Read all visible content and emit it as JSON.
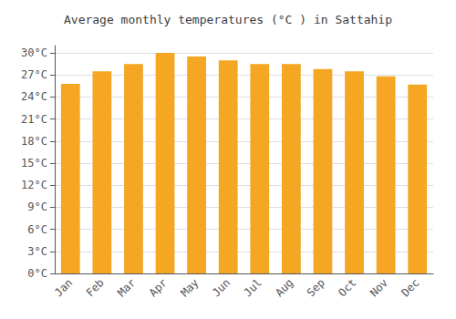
{
  "chart_data": {
    "type": "bar",
    "title": "Average monthly temperatures (°C ) in Sattahip",
    "categories": [
      "Jan",
      "Feb",
      "Mar",
      "Apr",
      "May",
      "Jun",
      "Jul",
      "Aug",
      "Sep",
      "Oct",
      "Nov",
      "Dec"
    ],
    "values": [
      25.8,
      27.5,
      28.5,
      30.0,
      29.5,
      29.0,
      28.5,
      28.5,
      27.8,
      27.5,
      26.8,
      25.7
    ],
    "color": "#F5A623",
    "ylim": [
      0,
      31
    ],
    "yticks": [
      {
        "value": 0,
        "label": "0°C"
      },
      {
        "value": 3,
        "label": "3°C"
      },
      {
        "value": 6,
        "label": "6°C"
      },
      {
        "value": 9,
        "label": "9°C"
      },
      {
        "value": 12,
        "label": "12°C"
      },
      {
        "value": 15,
        "label": "15°C"
      },
      {
        "value": 18,
        "label": "18°C"
      },
      {
        "value": 21,
        "label": "21°C"
      },
      {
        "value": 24,
        "label": "24°C"
      },
      {
        "value": 27,
        "label": "27°C"
      },
      {
        "value": 30,
        "label": "30°C"
      }
    ],
    "grid": true
  }
}
